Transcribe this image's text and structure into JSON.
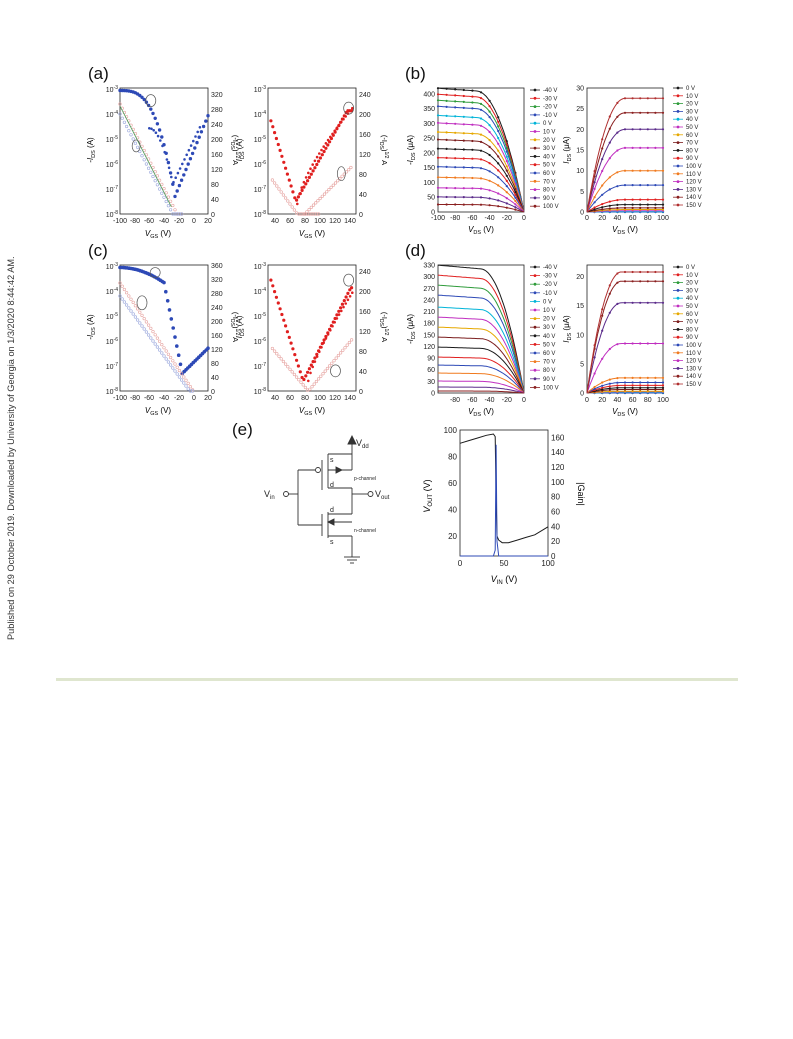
{
  "side_note": "Published on 29 October 2019. Downloaded by University of Georgia on 1/3/2020 8:44:42 AM.",
  "panels": {
    "a": "(a)",
    "b": "(b)",
    "c": "(c)",
    "d": "(d)",
    "e": "(e)"
  },
  "colors": {
    "blue": "#2d49b6",
    "red": "#e01f1f",
    "pink": "#e6a3a0",
    "lightblue": "#9aa7dc",
    "green": "#4a9a5a",
    "black": "#1a1a1a"
  },
  "legend_vgs_a": [
    "0 V",
    "10 V",
    "20 V",
    "30 V",
    "40 V",
    "50 V",
    "60 V",
    "70 V",
    "80 V",
    "90 V",
    "100 V",
    "110 V",
    "120 V",
    "130 V",
    "140 V",
    "150 V"
  ],
  "legend_vgs_b": [
    "-40 V",
    "-30 V",
    "-20 V",
    "-10 V",
    "0 V",
    "10 V",
    "20 V",
    "30 V",
    "40 V",
    "50 V",
    "60 V",
    "70 V",
    "80 V",
    "90 V",
    "100 V"
  ],
  "legend_colors": [
    "#1a1a1a",
    "#e01f1f",
    "#2e9b3a",
    "#2d49b6",
    "#00b4d8",
    "#c02fc0",
    "#e6a800",
    "#7b1d1d",
    "#1a1a1a",
    "#e01f1f",
    "#2d49b6",
    "#f07a1f",
    "#c02fc0",
    "#5a2a8a",
    "#8a1f1f",
    "#b03030"
  ],
  "circuit": {
    "vdd": "V",
    "vdd_sub": "dd",
    "vin": "V",
    "vin_sub": "in",
    "vout": "V",
    "vout_sub": "out",
    "s1": "s",
    "d1": "d",
    "p_channel": "p-channel",
    "d2": "d",
    "s2": "s",
    "n_channel": "n-channel"
  },
  "chart_data": [
    {
      "type": "scatter",
      "panel": "(a) left",
      "xlabel": "V",
      "xlabel_sub": "GS",
      "xlabel_unit": " (V)",
      "ylabel": "-I",
      "ylabel_sub": "DS",
      "ylabel_unit": " (A)",
      "y2label": "(-I",
      "y2label_sub": "DS",
      "y2label_rest": ")",
      "y2label_tail": " A",
      "y2label_tail_sup": "1/2",
      "y2label_mult": " (X10",
      "y2label_mult_sup": "-3",
      "y2label_close": ")",
      "xticks": [
        "-100",
        "-80",
        "-60",
        "-40",
        "-20",
        "0",
        "20"
      ],
      "yticks": [
        "10",
        "10",
        "10",
        "10",
        "10",
        "10"
      ],
      "yticks_exp": [
        "-3",
        "-4",
        "-5",
        "-6",
        "-7",
        "-8"
      ],
      "y2ticks": [
        "0",
        "40",
        "80",
        "120",
        "160",
        "200",
        "240",
        "280",
        "320"
      ],
      "xlim": [
        -100,
        20
      ]
    },
    {
      "type": "scatter",
      "panel": "(a) right",
      "xlabel": "V",
      "xlabel_sub": "GS",
      "xlabel_unit": " (V)",
      "ylabel": "I",
      "ylabel_sub": "DS",
      "ylabel_unit": " (A)",
      "xticks": [
        "40",
        "60",
        "80",
        "100",
        "120",
        "140"
      ],
      "yticks": [
        "10",
        "10",
        "10",
        "10",
        "10",
        "10"
      ],
      "yticks_exp": [
        "-3",
        "-4",
        "-5",
        "-6",
        "-7",
        "-8"
      ],
      "y2ticks": [
        "0",
        "40",
        "80",
        "120",
        "160",
        "200",
        "240"
      ],
      "xlim": [
        30,
        150
      ]
    },
    {
      "type": "line",
      "panel": "(b) left",
      "xlabel": "V",
      "xlabel_sub": "DS",
      "xlabel_unit": " (V)",
      "ylabel": "-I",
      "ylabel_sub": "DS",
      "ylabel_unit": " (μA)",
      "xticks": [
        "-100",
        "-80",
        "-60",
        "-40",
        "-20",
        "0"
      ],
      "yticks": [
        "0",
        "50",
        "100",
        "150",
        "200",
        "250",
        "300",
        "350",
        "400"
      ],
      "xlim": [
        -100,
        0
      ],
      "ylim": [
        0,
        420
      ]
    },
    {
      "type": "line",
      "panel": "(b) right",
      "xlabel": "V",
      "xlabel_sub": "DS",
      "xlabel_unit": " (V)",
      "ylabel": "I",
      "ylabel_sub": "DS",
      "ylabel_unit": " (μA)",
      "xticks": [
        "0",
        "20",
        "40",
        "60",
        "80",
        "100"
      ],
      "yticks": [
        "0",
        "5",
        "10",
        "15",
        "20",
        "25",
        "30"
      ],
      "xlim": [
        0,
        100
      ],
      "ylim": [
        0,
        30
      ]
    },
    {
      "type": "scatter",
      "panel": "(c) left",
      "xlabel": "V",
      "xlabel_sub": "GS",
      "xlabel_unit": " (V)",
      "ylabel": "-I",
      "ylabel_sub": "DS",
      "ylabel_unit": " (A)",
      "xticks": [
        "-100",
        "-80",
        "-60",
        "-40",
        "-20",
        "0",
        "20"
      ],
      "yticks": [
        "10",
        "10",
        "10",
        "10",
        "10",
        "10"
      ],
      "yticks_exp": [
        "-3",
        "-4",
        "-5",
        "-6",
        "-7",
        "-8"
      ],
      "y2ticks": [
        "0",
        "40",
        "80",
        "120",
        "160",
        "200",
        "240",
        "280",
        "320",
        "360"
      ],
      "xlim": [
        -100,
        20
      ]
    },
    {
      "type": "scatter",
      "panel": "(c) right",
      "xlabel": "V",
      "xlabel_sub": "GS",
      "xlabel_unit": " (V)",
      "ylabel": "I",
      "ylabel_sub": "DS",
      "ylabel_unit": " (A)",
      "xticks": [
        "40",
        "60",
        "80",
        "100",
        "120",
        "140"
      ],
      "yticks": [
        "10",
        "10",
        "10",
        "10",
        "10",
        "10"
      ],
      "yticks_exp": [
        "-3",
        "-4",
        "-5",
        "-6",
        "-7",
        "-8"
      ],
      "y2ticks": [
        "0",
        "40",
        "80",
        "120",
        "160",
        "200",
        "240"
      ],
      "xlim": [
        30,
        150
      ]
    },
    {
      "type": "line",
      "panel": "(d) left",
      "xlabel": "V",
      "xlabel_sub": "DS",
      "xlabel_unit": " (V)",
      "ylabel": "-I",
      "ylabel_sub": "DS",
      "ylabel_unit": " (μA)",
      "xticks": [
        "-80",
        "-60",
        "-40",
        "-20",
        "0"
      ],
      "yticks": [
        "0",
        "30",
        "60",
        "90",
        "120",
        "150",
        "180",
        "210",
        "240",
        "270",
        "300",
        "330"
      ],
      "xlim": [
        -100,
        0
      ],
      "ylim": [
        0,
        330
      ]
    },
    {
      "type": "line",
      "panel": "(d) right",
      "xlabel": "V",
      "xlabel_sub": "DS",
      "xlabel_unit": " (V)",
      "ylabel": "I",
      "ylabel_sub": "DS",
      "ylabel_unit": " (μA)",
      "xticks": [
        "0",
        "20",
        "40",
        "60",
        "80",
        "100"
      ],
      "yticks": [
        "0",
        "5",
        "10",
        "15",
        "20"
      ],
      "xlim": [
        0,
        100
      ],
      "ylim": [
        0,
        22
      ]
    },
    {
      "type": "line",
      "panel": "(e) transfer",
      "xlabel": "V",
      "xlabel_sub": "IN",
      "xlabel_unit": " (V)",
      "ylabel": "V",
      "ylabel_sub": "OUT",
      "ylabel_unit": " (V)",
      "y2label": "|Gain|",
      "xticks": [
        "0",
        "50",
        "100"
      ],
      "yticks": [
        "20",
        "40",
        "60",
        "80",
        "100"
      ],
      "y2ticks": [
        "0",
        "20",
        "40",
        "60",
        "80",
        "100",
        "120",
        "140",
        "160"
      ],
      "xlim": [
        0,
        100
      ],
      "ylim": [
        5,
        100
      ],
      "series": [
        {
          "color": "#1a1a1a",
          "x": [
            0,
            10,
            20,
            30,
            38,
            40,
            41,
            42,
            44,
            48,
            55,
            65,
            75,
            85,
            100
          ],
          "y": [
            90,
            92,
            94,
            96,
            97,
            95,
            50,
            20,
            17,
            15,
            15,
            17,
            19,
            21,
            27
          ]
        },
        {
          "color": "#2d49b6",
          "x": [
            0,
            38,
            40,
            41,
            42,
            44,
            100
          ],
          "y": [
            0,
            0,
            8,
            150,
            20,
            0,
            0
          ]
        }
      ]
    }
  ]
}
